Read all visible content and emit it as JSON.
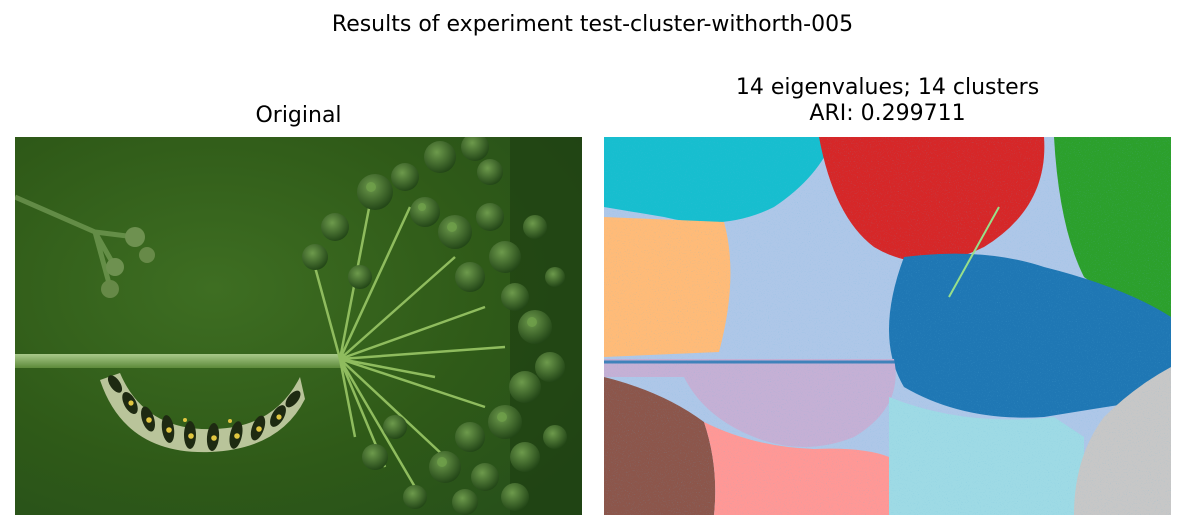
{
  "figure": {
    "suptitle": "Results of experiment test-cluster-withorth-005"
  },
  "panels": {
    "original": {
      "title": "Original",
      "subject": "caterpillar-on-plant-stem"
    },
    "clustered": {
      "title_line1": "14 eigenvalues; 14 clusters",
      "title_line2": "ARI: 0.299711",
      "cluster_colors": [
        "#17becf",
        "#d62728",
        "#2ca02c",
        "#ffbb78",
        "#aec7e8",
        "#1f77b4",
        "#c5b0d5",
        "#8c564b",
        "#ff9896",
        "#9edae5",
        "#c7c7c7",
        "#98df8a",
        "#ff7f0e",
        "#9467bd"
      ]
    }
  },
  "colors": {
    "background": "#ffffff",
    "leaf_dark": "#2f5a18",
    "caterpillar_light": "#b9c49a"
  }
}
